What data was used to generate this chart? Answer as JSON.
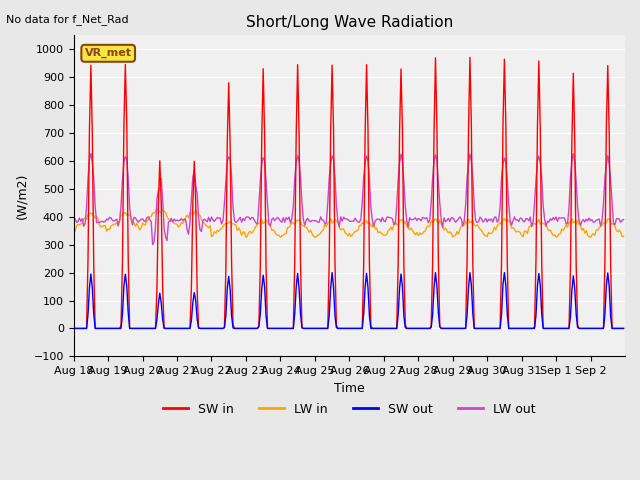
{
  "title": "Short/Long Wave Radiation",
  "ylabel": "(W/m2)",
  "xlabel": "Time",
  "top_left_text": "No data for f_Net_Rad",
  "legend_label_text": "VR_met",
  "ylim": [
    -100,
    1050
  ],
  "series_labels": [
    "SW in",
    "LW in",
    "SW out",
    "LW out"
  ],
  "series_colors": [
    "#ff0000",
    "#ffa500",
    "#0000ff",
    "#cc44cc"
  ],
  "x_tick_labels": [
    "Aug 18",
    "Aug 19",
    "Aug 20",
    "Aug 21",
    "Aug 22",
    "Aug 23",
    "Aug 24",
    "Aug 25",
    "Aug 26",
    "Aug 27",
    "Aug 28",
    "Aug 29",
    "Aug 30",
    "Aug 31",
    "Sep 1",
    "Sep 2"
  ],
  "n_days": 16,
  "background_color": "#e8e8e8",
  "plot_bg_color": "#f0f0f0",
  "grid_color": "#ffffff",
  "peak_vals_sw_in": [
    940,
    960,
    600,
    600,
    890,
    925,
    940,
    930,
    950,
    940,
    960,
    960,
    960,
    950,
    910,
    950
  ]
}
